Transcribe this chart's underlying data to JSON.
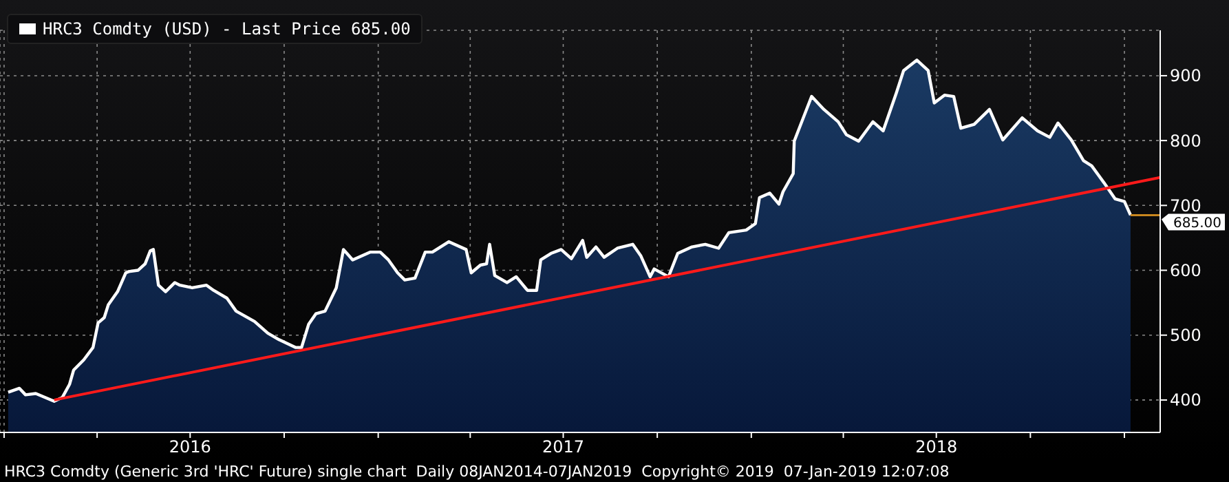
{
  "chart_data": {
    "type": "area",
    "annotations": [
      "HRC3 Comdty (Generic 3rd 'HRC' Future) single chart  Daily 08JAN2014-07JAN2019  Copyright© 2019  07-Jan-2019 12:07:08"
    ],
    "xlim": [
      "2015-12-28",
      "2019-02-05"
    ],
    "xticks": [
      {
        "value": "2016-01-01",
        "label": null
      },
      {
        "value": "2016-04-01",
        "label": null
      },
      {
        "value": "2016-07-01",
        "label": "2016"
      },
      {
        "value": "2016-10-01",
        "label": null
      },
      {
        "value": "2017-01-01",
        "label": null
      },
      {
        "value": "2017-04-01",
        "label": null
      },
      {
        "value": "2017-07-01",
        "label": "2017"
      },
      {
        "value": "2017-10-01",
        "label": null
      },
      {
        "value": "2018-01-01",
        "label": null
      },
      {
        "value": "2018-04-01",
        "label": null
      },
      {
        "value": "2018-07-01",
        "label": "2018"
      },
      {
        "value": "2018-10-01",
        "label": null
      },
      {
        "value": "2019-01-01",
        "label": null
      }
    ],
    "ylim": [
      350,
      970
    ],
    "yticks": [
      400,
      500,
      600,
      700,
      800,
      900
    ],
    "grid": true,
    "legend": "top left",
    "ref_lines": [
      {
        "axis": "y",
        "value": 685,
        "label": "685.00",
        "color": "#c8861e"
      }
    ],
    "series": [
      {
        "name": "HRC3 Comdty (USD) - Last Price 685.00",
        "color": "#ffffff",
        "x": [
          "2016-01-05",
          "2016-01-16",
          "2016-01-22",
          "2016-02-01",
          "2016-02-19",
          "2016-02-27",
          "2016-03-05",
          "2016-03-09",
          "2016-03-19",
          "2016-03-28",
          "2016-04-02",
          "2016-04-08",
          "2016-04-12",
          "2016-04-21",
          "2016-04-29",
          "2016-05-02",
          "2016-05-11",
          "2016-05-18",
          "2016-05-23",
          "2016-05-26",
          "2016-05-31",
          "2016-06-07",
          "2016-06-16",
          "2016-06-21",
          "2016-07-03",
          "2016-07-17",
          "2016-07-24",
          "2016-08-06",
          "2016-08-15",
          "2016-09-02",
          "2016-09-15",
          "2016-09-26",
          "2016-10-12",
          "2016-10-18",
          "2016-10-25",
          "2016-11-01",
          "2016-11-10",
          "2016-11-21",
          "2016-11-28",
          "2016-12-07",
          "2016-12-24",
          "2017-01-03",
          "2017-01-11",
          "2017-01-20",
          "2017-01-27",
          "2017-02-06",
          "2017-02-16",
          "2017-02-23",
          "2017-03-11",
          "2017-03-28",
          "2017-04-02",
          "2017-04-11",
          "2017-04-17",
          "2017-04-20",
          "2017-04-25",
          "2017-05-07",
          "2017-05-16",
          "2017-05-27",
          "2017-06-05",
          "2017-06-09",
          "2017-06-19",
          "2017-06-29",
          "2017-07-09",
          "2017-07-20",
          "2017-07-24",
          "2017-08-02",
          "2017-08-10",
          "2017-08-23",
          "2017-09-07",
          "2017-09-15",
          "2017-09-24",
          "2017-09-28",
          "2017-10-12",
          "2017-10-21",
          "2017-11-04",
          "2017-11-17",
          "2017-11-30",
          "2017-12-10",
          "2017-12-27",
          "2018-01-05",
          "2018-01-09",
          "2018-01-19",
          "2018-01-28",
          "2018-02-01",
          "2018-02-11",
          "2018-02-12",
          "2018-03-01",
          "2018-03-13",
          "2018-03-27",
          "2018-04-04",
          "2018-04-16",
          "2018-04-30",
          "2018-05-10",
          "2018-05-23",
          "2018-05-30",
          "2018-06-12",
          "2018-06-23",
          "2018-06-29",
          "2018-07-09",
          "2018-07-18",
          "2018-07-25",
          "2018-08-07",
          "2018-08-22",
          "2018-09-04",
          "2018-09-23",
          "2018-10-08",
          "2018-10-20",
          "2018-10-28",
          "2018-11-10",
          "2018-11-22",
          "2018-11-30",
          "2018-12-12",
          "2018-12-23",
          "2019-01-01",
          "2019-01-07"
        ],
        "values": [
          412,
          418,
          408,
          410,
          398,
          404,
          424,
          446,
          462,
          481,
          519,
          527,
          547,
          567,
          596,
          598,
          600,
          610,
          630,
          632,
          577,
          567,
          581,
          577,
          573,
          577,
          569,
          557,
          537,
          521,
          503,
          493,
          481,
          481,
          517,
          533,
          537,
          573,
          632,
          616,
          628,
          628,
          616,
          596,
          585,
          588,
          628,
          628,
          644,
          632,
          596,
          608,
          610,
          640,
          592,
          581,
          590,
          569,
          569,
          616,
          626,
          632,
          618,
          646,
          620,
          636,
          620,
          634,
          640,
          622,
          590,
          602,
          590,
          626,
          636,
          640,
          634,
          658,
          662,
          672,
          712,
          719,
          702,
          721,
          749,
          799,
          868,
          848,
          829,
          809,
          799,
          829,
          815,
          874,
          908,
          924,
          908,
          858,
          870,
          868,
          819,
          825,
          848,
          801,
          835,
          815,
          805,
          827,
          801,
          769,
          761,
          735,
          710,
          706,
          685
        ]
      },
      {
        "type": "line",
        "color": "#ff1a1a",
        "x": [
          "2016-02-19",
          "2019-02-05"
        ],
        "values": [
          400,
          743
        ]
      }
    ]
  }
}
